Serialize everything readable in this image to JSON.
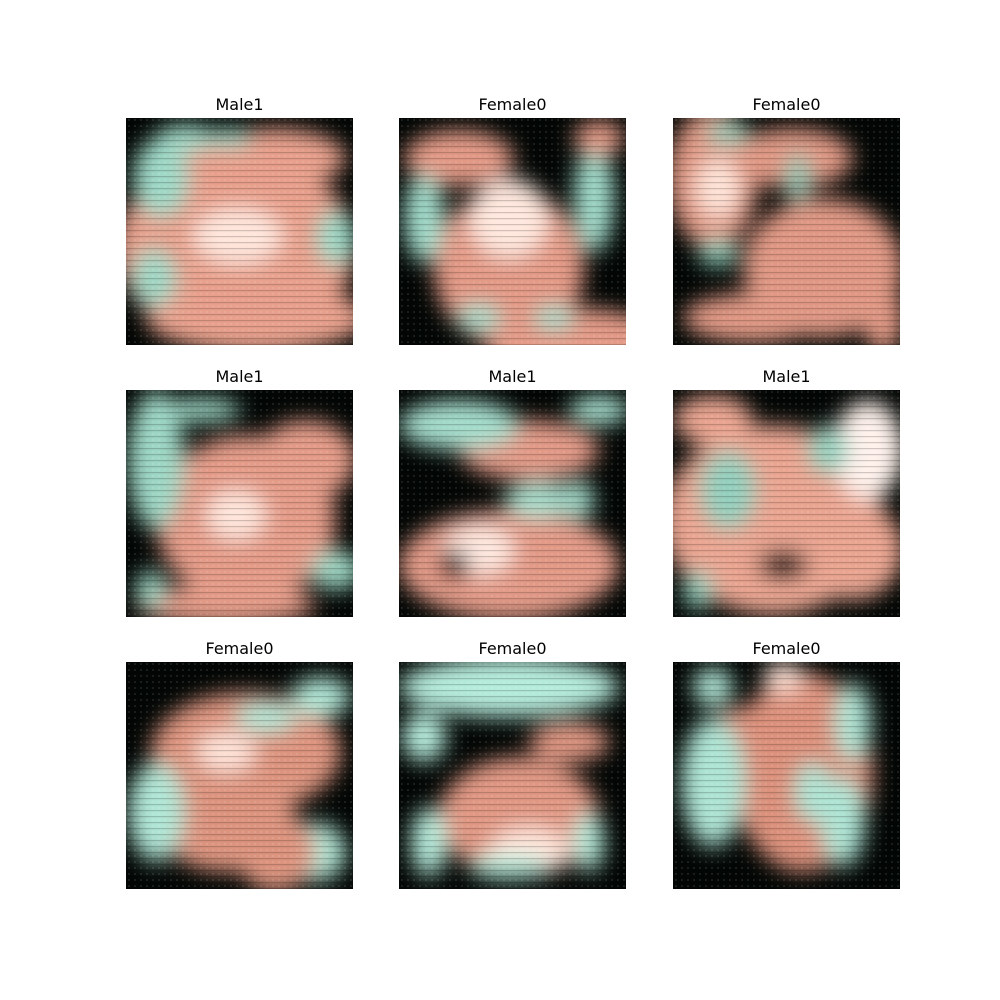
{
  "figure": {
    "panels": [
      {
        "title": "Male1",
        "palette": {
          "dark": "#020604",
          "teal": "#9fd8c6",
          "peach": "#e8a08c",
          "light": "#ffe6dc"
        }
      },
      {
        "title": "Female0",
        "palette": {
          "dark": "#020604",
          "teal": "#a2dccb",
          "peach": "#e39a86",
          "light": "#ffe8de"
        }
      },
      {
        "title": "Female0",
        "palette": {
          "dark": "#020604",
          "teal": "#8fcab8",
          "peach": "#e09884",
          "light": "#ffe4d8"
        }
      },
      {
        "title": "Male1",
        "palette": {
          "dark": "#020604",
          "teal": "#9ed7c5",
          "peach": "#e49b88",
          "light": "#ffe6dc"
        }
      },
      {
        "title": "Male1",
        "palette": {
          "dark": "#020604",
          "teal": "#a5ddcc",
          "peach": "#e29a87",
          "light": "#ffe9e0"
        }
      },
      {
        "title": "Male1",
        "palette": {
          "dark": "#020604",
          "teal": "#94cfbd",
          "peach": "#eaa591",
          "light": "#fff2ec"
        }
      },
      {
        "title": "Female0",
        "palette": {
          "dark": "#020604",
          "teal": "#b0e6d6",
          "peach": "#dd947f",
          "light": "#ffe3d8"
        }
      },
      {
        "title": "Female0",
        "palette": {
          "dark": "#020604",
          "teal": "#b6ecdc",
          "peach": "#e09783",
          "light": "#ffe5da"
        }
      },
      {
        "title": "Female0",
        "palette": {
          "dark": "#020604",
          "teal": "#aee4d4",
          "peach": "#dc917c",
          "light": "#ffe2d6"
        }
      }
    ]
  }
}
